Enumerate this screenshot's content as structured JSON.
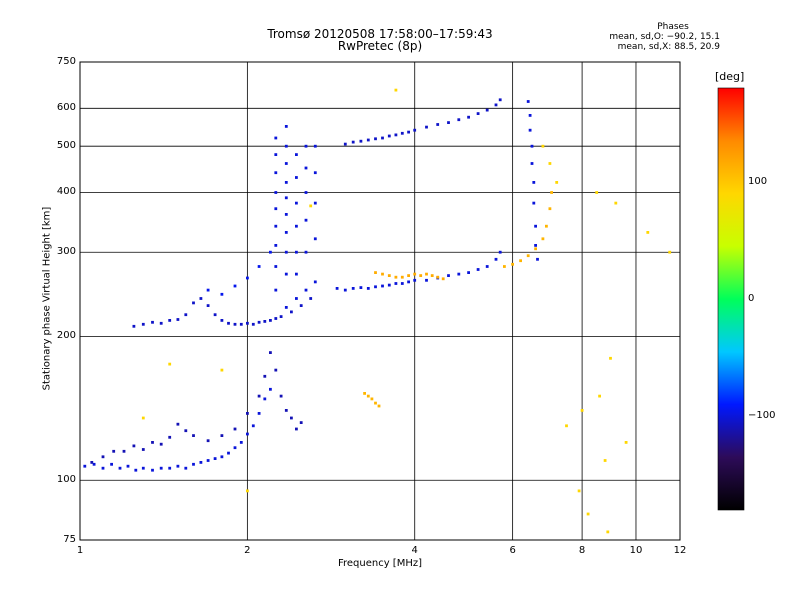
{
  "title": "Tromsø 20120508 17:58:00–17:59:43",
  "subtitle": "RwPretec (8p)",
  "phases": {
    "title": "Phases",
    "line_o": "mean, sd,O: −90.2, 15.1",
    "line_x": "mean, sd,X:  88.5, 20.9"
  },
  "colorbar": {
    "unit": "[deg]",
    "ticks": [
      "100",
      "0",
      "−100"
    ],
    "tick_values": [
      100,
      0,
      -100
    ],
    "range": [
      -180,
      180
    ],
    "colors": [
      "#000000",
      "#2d0b59",
      "#0018ff",
      "#00c8ff",
      "#00ff5a",
      "#c8ff00",
      "#ffd700",
      "#ff8a00",
      "#ff0000"
    ]
  },
  "chart_data": {
    "type": "scatter",
    "title": "Tromsø 20120508 17:58:00–17:59:43",
    "subtitle": "RwPretec (8p)",
    "xlabel": "Frequency [MHz]",
    "ylabel": "Stationary phase Virtual Height [km]",
    "xscale": "log",
    "yscale": "log",
    "xlim": [
      1,
      12
    ],
    "ylim": [
      75,
      750
    ],
    "xticks": [
      1,
      2,
      4,
      6,
      8,
      10,
      12
    ],
    "xtick_labels": [
      "1",
      "2",
      "4",
      "6",
      "8",
      "10",
      "12"
    ],
    "yticks": [
      75,
      100,
      200,
      300,
      400,
      500,
      600,
      750
    ],
    "ytick_labels": [
      "75",
      "100",
      "200",
      "300",
      "400",
      "500",
      "600",
      "750"
    ],
    "grid": true,
    "color_scale": "phase (deg)",
    "series": [
      {
        "points": [
          [
            1.02,
            107
          ],
          [
            1.06,
            108
          ],
          [
            1.1,
            106
          ],
          [
            1.14,
            108
          ],
          [
            1.18,
            106
          ],
          [
            1.22,
            107
          ],
          [
            1.26,
            105
          ],
          [
            1.3,
            106
          ],
          [
            1.35,
            105
          ],
          [
            1.4,
            106
          ],
          [
            1.45,
            106
          ],
          [
            1.5,
            107
          ],
          [
            1.55,
            106
          ],
          [
            1.6,
            108
          ],
          [
            1.65,
            109
          ],
          [
            1.7,
            110
          ],
          [
            1.75,
            111
          ],
          [
            1.8,
            112
          ],
          [
            1.85,
            114
          ],
          [
            1.9,
            117
          ],
          [
            1.95,
            120
          ],
          [
            2.0,
            125
          ],
          [
            2.05,
            130
          ],
          [
            2.1,
            138
          ],
          [
            2.15,
            148
          ],
          [
            2.2,
            155
          ]
        ],
        "phase": -100
      },
      {
        "points": [
          [
            1.05,
            109
          ],
          [
            1.1,
            112
          ],
          [
            1.15,
            115
          ],
          [
            1.2,
            115
          ],
          [
            1.25,
            118
          ],
          [
            1.3,
            116
          ],
          [
            1.35,
            120
          ],
          [
            1.4,
            119
          ],
          [
            1.45,
            123
          ],
          [
            1.5,
            131
          ],
          [
            1.55,
            127
          ],
          [
            1.6,
            124
          ],
          [
            1.7,
            121
          ],
          [
            1.8,
            124
          ],
          [
            1.9,
            128
          ],
          [
            2.0,
            138
          ],
          [
            2.1,
            150
          ],
          [
            2.15,
            165
          ],
          [
            2.2,
            185
          ],
          [
            2.25,
            170
          ],
          [
            2.3,
            150
          ],
          [
            2.35,
            140
          ],
          [
            2.4,
            135
          ],
          [
            2.45,
            128
          ],
          [
            2.5,
            132
          ]
        ],
        "phase": -110
      },
      {
        "points": [
          [
            1.25,
            210
          ],
          [
            1.3,
            212
          ],
          [
            1.35,
            214
          ],
          [
            1.4,
            213
          ],
          [
            1.45,
            216
          ],
          [
            1.5,
            217
          ],
          [
            1.55,
            222
          ],
          [
            1.6,
            235
          ],
          [
            1.65,
            240
          ],
          [
            1.7,
            232
          ],
          [
            1.75,
            222
          ],
          [
            1.8,
            216
          ],
          [
            1.85,
            213
          ],
          [
            1.9,
            212
          ],
          [
            1.95,
            212
          ],
          [
            2.0,
            213
          ],
          [
            2.05,
            212
          ],
          [
            2.1,
            214
          ],
          [
            2.15,
            215
          ],
          [
            2.2,
            216
          ],
          [
            2.25,
            218
          ],
          [
            2.3,
            220
          ],
          [
            2.4,
            225
          ],
          [
            2.5,
            232
          ],
          [
            2.6,
            240
          ]
        ],
        "phase": -105
      },
      {
        "points": [
          [
            1.7,
            250
          ],
          [
            1.8,
            245
          ],
          [
            1.9,
            255
          ],
          [
            2.0,
            265
          ],
          [
            2.1,
            280
          ],
          [
            2.2,
            300
          ]
        ],
        "phase": -95
      },
      {
        "points": [
          [
            2.25,
            250
          ],
          [
            2.25,
            280
          ],
          [
            2.25,
            310
          ],
          [
            2.25,
            340
          ],
          [
            2.25,
            370
          ],
          [
            2.25,
            400
          ],
          [
            2.25,
            440
          ],
          [
            2.25,
            480
          ],
          [
            2.25,
            520
          ],
          [
            2.35,
            230
          ],
          [
            2.35,
            270
          ],
          [
            2.35,
            300
          ],
          [
            2.35,
            330
          ],
          [
            2.35,
            360
          ],
          [
            2.35,
            390
          ],
          [
            2.35,
            420
          ],
          [
            2.35,
            460
          ],
          [
            2.35,
            500
          ],
          [
            2.35,
            550
          ],
          [
            2.45,
            240
          ],
          [
            2.45,
            270
          ],
          [
            2.45,
            300
          ],
          [
            2.45,
            340
          ],
          [
            2.45,
            380
          ],
          [
            2.45,
            430
          ],
          [
            2.45,
            480
          ],
          [
            2.55,
            250
          ],
          [
            2.55,
            300
          ],
          [
            2.55,
            350
          ],
          [
            2.55,
            400
          ],
          [
            2.55,
            450
          ],
          [
            2.55,
            500
          ],
          [
            2.65,
            260
          ],
          [
            2.65,
            320
          ],
          [
            2.65,
            380
          ],
          [
            2.65,
            440
          ],
          [
            2.65,
            500
          ]
        ],
        "phase": -100
      },
      {
        "points": [
          [
            2.9,
            252
          ],
          [
            3.0,
            250
          ],
          [
            3.1,
            252
          ],
          [
            3.2,
            253
          ],
          [
            3.3,
            252
          ],
          [
            3.4,
            254
          ],
          [
            3.5,
            255
          ],
          [
            3.6,
            256
          ],
          [
            3.7,
            258
          ],
          [
            3.8,
            258
          ],
          [
            3.9,
            260
          ],
          [
            4.0,
            262
          ],
          [
            4.2,
            262
          ],
          [
            4.4,
            265
          ],
          [
            4.6,
            268
          ],
          [
            4.8,
            270
          ],
          [
            5.0,
            272
          ],
          [
            5.2,
            276
          ],
          [
            5.4,
            280
          ],
          [
            5.6,
            290
          ],
          [
            5.7,
            300
          ]
        ],
        "phase": -100
      },
      {
        "points": [
          [
            3.0,
            505
          ],
          [
            3.1,
            510
          ],
          [
            3.2,
            512
          ],
          [
            3.3,
            515
          ],
          [
            3.4,
            518
          ],
          [
            3.5,
            520
          ],
          [
            3.6,
            525
          ],
          [
            3.7,
            528
          ],
          [
            3.8,
            532
          ],
          [
            3.9,
            535
          ],
          [
            4.0,
            540
          ],
          [
            4.2,
            548
          ],
          [
            4.4,
            555
          ],
          [
            4.6,
            560
          ],
          [
            4.8,
            568
          ],
          [
            5.0,
            575
          ],
          [
            5.2,
            585
          ],
          [
            5.4,
            595
          ],
          [
            5.6,
            610
          ],
          [
            5.7,
            625
          ]
        ],
        "phase": -105
      },
      {
        "points": [
          [
            5.8,
            280
          ],
          [
            6.0,
            283
          ],
          [
            6.2,
            288
          ],
          [
            6.4,
            295
          ],
          [
            6.6,
            305
          ],
          [
            6.8,
            320
          ],
          [
            6.9,
            340
          ],
          [
            7.0,
            370
          ],
          [
            7.05,
            400
          ]
        ],
        "phase": 110
      },
      {
        "points": [
          [
            3.4,
            272
          ],
          [
            3.5,
            270
          ],
          [
            3.6,
            268
          ],
          [
            3.7,
            266
          ],
          [
            3.8,
            266
          ],
          [
            3.9,
            268
          ],
          [
            4.0,
            270
          ],
          [
            4.1,
            268
          ],
          [
            4.2,
            270
          ],
          [
            4.3,
            268
          ],
          [
            4.4,
            266
          ],
          [
            4.5,
            264
          ]
        ],
        "phase": 115
      },
      {
        "points": [
          [
            3.25,
            152
          ],
          [
            3.3,
            150
          ],
          [
            3.35,
            148
          ],
          [
            3.4,
            145
          ],
          [
            3.45,
            143
          ]
        ],
        "phase": 110
      },
      {
        "points": [
          [
            6.4,
            620
          ],
          [
            6.45,
            580
          ],
          [
            6.45,
            540
          ],
          [
            6.5,
            500
          ],
          [
            6.5,
            460
          ],
          [
            6.55,
            420
          ],
          [
            6.55,
            380
          ],
          [
            6.6,
            340
          ],
          [
            6.6,
            310
          ],
          [
            6.65,
            290
          ]
        ],
        "phase": -100
      },
      {
        "points": [
          [
            6.8,
            500
          ],
          [
            7.0,
            460
          ],
          [
            7.2,
            420
          ],
          [
            8.5,
            400
          ],
          [
            9.2,
            380
          ],
          [
            10.5,
            330
          ],
          [
            11.5,
            300
          ],
          [
            9.0,
            180
          ],
          [
            8.6,
            150
          ],
          [
            8.0,
            140
          ],
          [
            7.5,
            130
          ],
          [
            9.6,
            120
          ],
          [
            8.8,
            110
          ],
          [
            7.9,
            95
          ],
          [
            8.2,
            85
          ],
          [
            8.9,
            78
          ],
          [
            1.3,
            135
          ],
          [
            1.45,
            175
          ],
          [
            1.8,
            170
          ],
          [
            3.7,
            655
          ],
          [
            2.0,
            95
          ],
          [
            2.6,
            375
          ]
        ],
        "phase": 90
      }
    ]
  }
}
